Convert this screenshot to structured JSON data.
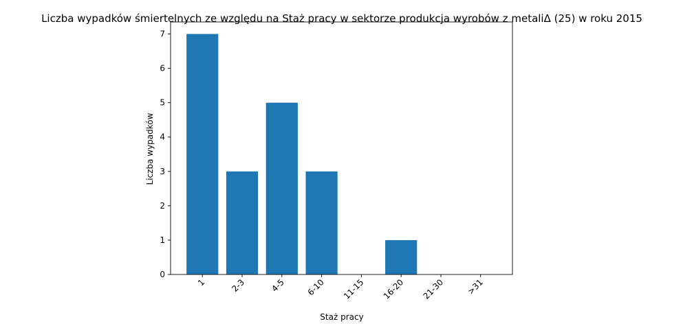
{
  "chart_data": {
    "type": "bar",
    "title": "Liczba wypadków śmiertelnych ze względu na Staż pracy w sektorze produkcja wyrobów z metaliΔ (25) w roku 2015",
    "xlabel": "Staż pracy",
    "ylabel": "Liczba wypadków",
    "categories": [
      "1",
      "2-3",
      "4-5",
      "6-10",
      "11-15",
      "16-20",
      "21-30",
      ">31"
    ],
    "values": [
      7,
      3,
      5,
      3,
      0,
      1,
      0,
      0
    ],
    "ylim": [
      0,
      7.35
    ],
    "yticks": [
      0,
      1,
      2,
      3,
      4,
      5,
      6,
      7
    ],
    "bar_color": "#1f77b4",
    "grid": false,
    "x_tick_rotation": 45
  }
}
